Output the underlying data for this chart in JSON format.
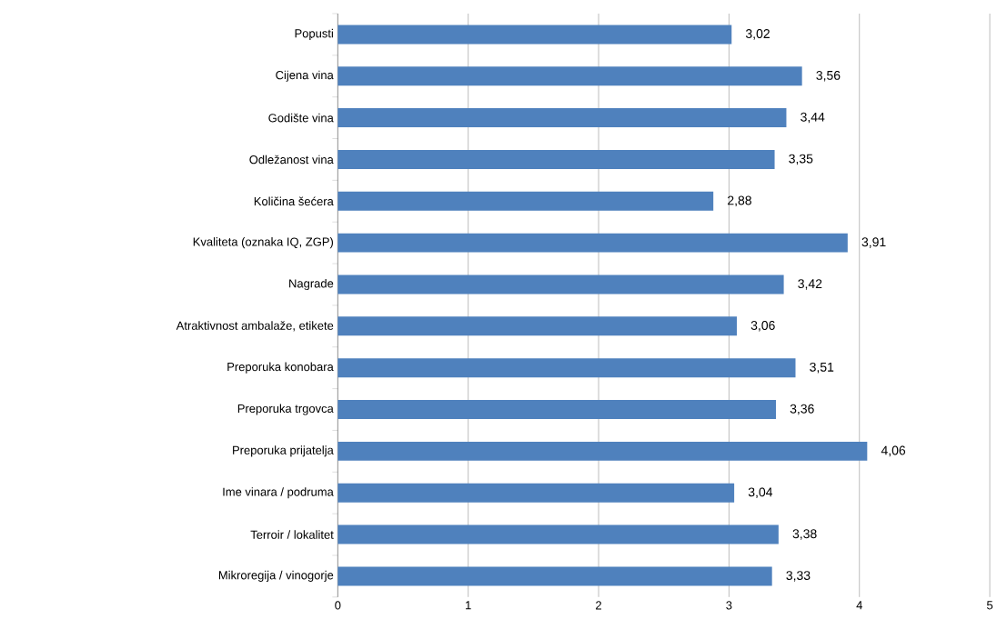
{
  "chart_data": {
    "type": "bar",
    "orientation": "horizontal",
    "categories": [
      "Popusti",
      "Cijena vina",
      "Godište vina",
      "Odležanost vina",
      "Količina šećera",
      "Kvaliteta (oznaka  IQ, ZGP)",
      "Nagrade",
      "Atraktivnost  ambalaže,  etikete",
      "Preporuka konobara",
      "Preporuka trgovca",
      "Preporuka prijatelja",
      "Ime vinara /  podruma",
      "Terroir / lokalitet",
      "Mikroregija / vinogorje"
    ],
    "values": [
      3.02,
      3.56,
      3.44,
      3.35,
      2.88,
      3.91,
      3.42,
      3.06,
      3.51,
      3.36,
      4.06,
      3.04,
      3.38,
      3.33
    ],
    "value_labels": [
      "3,02",
      "3,56",
      "3,44",
      "3,35",
      "2,88",
      "3,91",
      "3,42",
      "3,06",
      "3,51",
      "3,36",
      "4,06",
      "3,04",
      "3,38",
      "3,33"
    ],
    "color": "#4f81bd",
    "xlim": [
      0,
      5
    ],
    "xticks": [
      0,
      1,
      2,
      3,
      4,
      5
    ],
    "grid": "x"
  }
}
